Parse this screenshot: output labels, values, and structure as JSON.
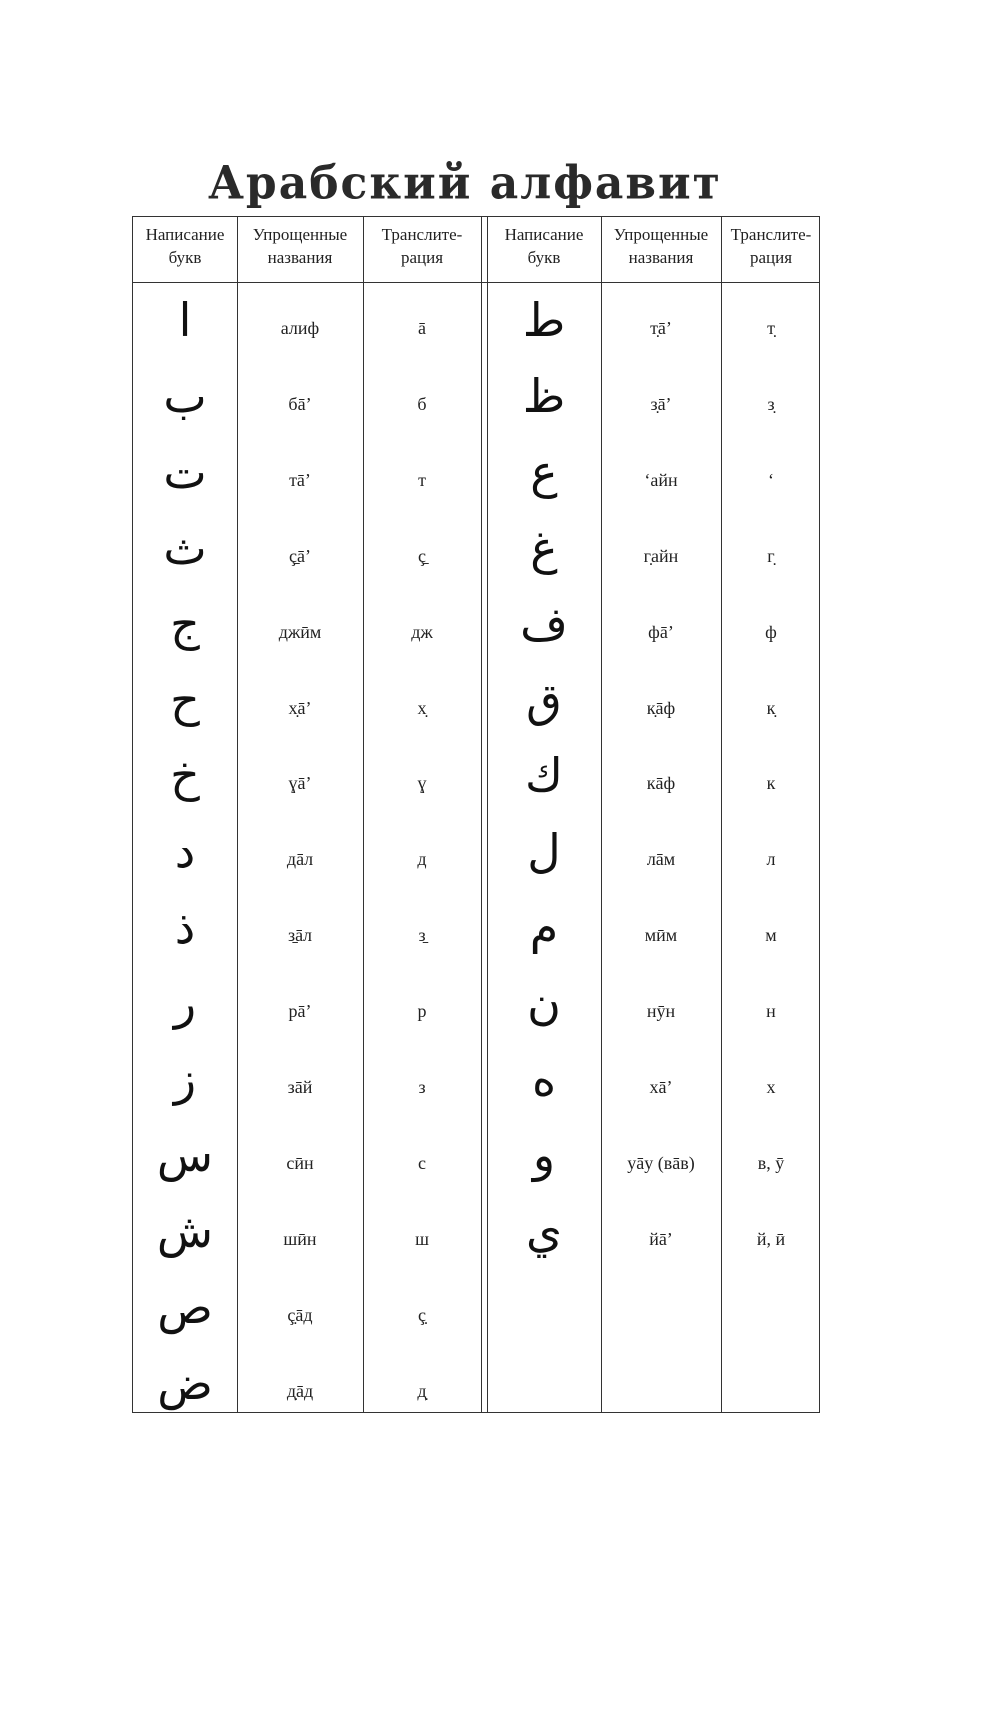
{
  "title": "Арабский алфавит",
  "headers": [
    "Написание букв",
    "Упрощенные названия",
    "Транслите-рация"
  ],
  "header_lines": [
    [
      "Написание",
      "букв"
    ],
    [
      "Упрощенные",
      "названия"
    ],
    [
      "Транслите-",
      "рация"
    ]
  ],
  "left": [
    {
      "letter": "ا",
      "name": "алиф",
      "translit": "ā"
    },
    {
      "letter": "ب",
      "name": "бā’",
      "translit": "б"
    },
    {
      "letter": "ت",
      "name": "тā’",
      "translit": "т"
    },
    {
      "letter": "ث",
      "name": "ç̱ā’",
      "translit": "ç̱"
    },
    {
      "letter": "ج",
      "name": "джӣм",
      "translit": "дж"
    },
    {
      "letter": "ح",
      "name": "х̣ā’",
      "translit": "х̣"
    },
    {
      "letter": "خ",
      "name": "ɣā’",
      "translit": "ɣ"
    },
    {
      "letter": "د",
      "name": "дāл",
      "translit": "д"
    },
    {
      "letter": "ذ",
      "name": "з̱āл",
      "translit": "з̱"
    },
    {
      "letter": "ر",
      "name": "рā’",
      "translit": "р"
    },
    {
      "letter": "ز",
      "name": "зāй",
      "translit": "з"
    },
    {
      "letter": "س",
      "name": "сӣн",
      "translit": "с"
    },
    {
      "letter": "ش",
      "name": "шӣн",
      "translit": "ш"
    },
    {
      "letter": "ص",
      "name": "ç̣āд",
      "translit": "ç̣"
    },
    {
      "letter": "ض",
      "name": "д̣āд",
      "translit": "д̣"
    }
  ],
  "right": [
    {
      "letter": "ط",
      "name": "т̣ā’",
      "translit": "т̣"
    },
    {
      "letter": "ظ",
      "name": "з̣ā’",
      "translit": "з̣"
    },
    {
      "letter": "ع",
      "name": "‘айн",
      "translit": "‘"
    },
    {
      "letter": "غ",
      "name": "г̣айн",
      "translit": "г̣"
    },
    {
      "letter": "ف",
      "name": "фā’",
      "translit": "ф"
    },
    {
      "letter": "ق",
      "name": "к̣āф",
      "translit": "к̣"
    },
    {
      "letter": "ك",
      "name": "кāф",
      "translit": "к"
    },
    {
      "letter": "ل",
      "name": "лāм",
      "translit": "л"
    },
    {
      "letter": "م",
      "name": "мӣм",
      "translit": "м"
    },
    {
      "letter": "ن",
      "name": "нӯн",
      "translit": "н"
    },
    {
      "letter": "ه",
      "name": "хā’",
      "translit": "х"
    },
    {
      "letter": "و",
      "name": "уāу (вāв)",
      "translit": "в, ӯ"
    },
    {
      "letter": "ي",
      "name": "йā’",
      "translit": "й, ӣ"
    }
  ]
}
